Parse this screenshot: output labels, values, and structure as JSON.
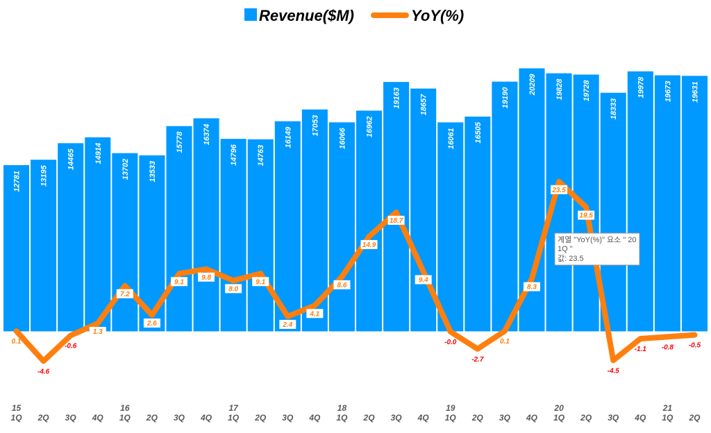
{
  "chart_data": {
    "type": "bar+line",
    "title": "",
    "categories": [
      "1Q",
      "2Q",
      "3Q",
      "4Q",
      "1Q",
      "2Q",
      "3Q",
      "4Q",
      "1Q",
      "2Q",
      "3Q",
      "4Q",
      "1Q",
      "2Q",
      "3Q",
      "4Q",
      "1Q",
      "2Q",
      "3Q",
      "4Q",
      "1Q",
      "2Q",
      "3Q",
      "4Q",
      "1Q",
      "2Q"
    ],
    "year_labels": [
      "15",
      "",
      "",
      "",
      "16",
      "",
      "",
      "",
      "17",
      "",
      "",
      "",
      "18",
      "",
      "",
      "",
      "19",
      "",
      "",
      "",
      "20",
      "",
      "",
      "",
      "21",
      ""
    ],
    "series": [
      {
        "name": "Revenue($M)",
        "type": "bar",
        "color": "#0099FF",
        "values": [
          12781,
          13195,
          14465,
          14914,
          13702,
          13533,
          15778,
          16374,
          14796,
          14763,
          16149,
          17053,
          16066,
          16962,
          19163,
          18657,
          16061,
          16505,
          19190,
          20209,
          19828,
          19728,
          18333,
          19978,
          19673,
          19631
        ]
      },
      {
        "name": "YoY(%)",
        "type": "line",
        "color": "#FF7F0E",
        "axis": "secondary",
        "values": [
          0.1,
          -4.6,
          -0.6,
          1.3,
          7.2,
          2.6,
          9.1,
          9.8,
          8.0,
          9.1,
          2.4,
          4.1,
          8.6,
          14.9,
          18.7,
          9.4,
          -0.0,
          -2.7,
          0.1,
          8.3,
          23.5,
          19.5,
          -4.5,
          -1.1,
          -0.8,
          -0.5
        ]
      }
    ],
    "legend": "top-center",
    "grid": false,
    "negative_label_color": "#FF0000"
  },
  "tooltip": {
    "line1": "계열 \"YoY(%)\" 요소 \" 20",
    "line2": "1Q \"",
    "line3": "값: 23.5"
  }
}
